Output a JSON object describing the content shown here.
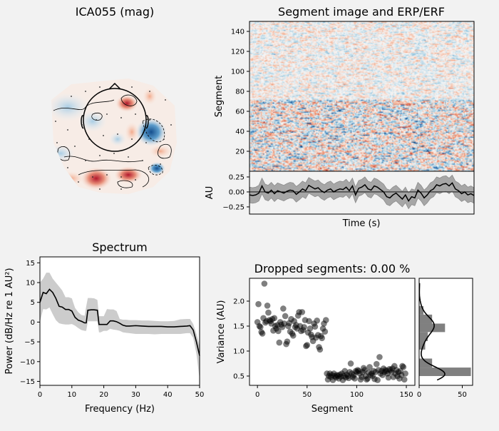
{
  "titles": {
    "topomap": "ICA055 (mag)",
    "segment_image": "Segment image and ERP/ERF",
    "spectrum": "Spectrum",
    "dropped": "Dropped segments: 0.00 %"
  },
  "chart_data": [
    {
      "id": "topomap",
      "type": "heatmap",
      "title": "ICA055 (mag)",
      "colormap": "RdBu_r",
      "colors": {
        "positive": "#b2182b",
        "negative": "#2166ac"
      }
    },
    {
      "id": "segment_image",
      "type": "heatmap",
      "title": "Segment image and ERP/ERF",
      "ylabel": "Segment",
      "ylim": [
        0,
        150
      ],
      "yticks": [
        "20",
        "40",
        "60",
        "80",
        "100",
        "120",
        "140"
      ],
      "colormap": "RdBu_r",
      "note_rows": "higher amplitude for segments 0–72"
    },
    {
      "id": "erp",
      "type": "line",
      "xlabel": "Time (s)",
      "ylabel": "AU",
      "ylim": [
        -0.37,
        0.345
      ],
      "yticks": [
        "0.25",
        "0.00",
        "−0.25"
      ],
      "mean": [
        -0.05,
        -0.06,
        -0.05,
        -0.02,
        0.1,
        0.0,
        -0.02,
        0.03,
        -0.03,
        0.02,
        0.0,
        -0.02,
        0.01,
        0.03,
        0.02,
        -0.04,
        0.0,
        0.05,
        0.02,
        0.11,
        0.08,
        0.05,
        0.07,
        0.02,
        -0.01,
        0.03,
        0.05,
        0.0,
        0.03,
        0.05,
        0.04,
        0.08,
        0.02,
        0.1,
        -0.05,
        0.06,
        0.08,
        0.12,
        0.05,
        0.03,
        0.1,
        0.08,
        0.04,
        0.0,
        -0.08,
        -0.1,
        -0.05,
        -0.02,
        -0.07,
        -0.12,
        -0.05,
        -0.15,
        -0.08,
        -0.1,
        0.03,
        -0.02,
        -0.1,
        -0.05,
        0.02,
        0.05,
        0.12,
        0.1,
        0.13,
        0.14,
        0.1,
        0.15,
        0.05,
        0.02,
        -0.03,
        0.0,
        -0.05,
        -0.03,
        -0.06
      ],
      "std": 0.13
    },
    {
      "id": "spectrum",
      "type": "line",
      "title": "Spectrum",
      "xlabel": "Frequency (Hz)",
      "ylabel": "Power (dB/Hz re 1 AU²)",
      "xlim": [
        0,
        50
      ],
      "ylim": [
        -16,
        16.5
      ],
      "xticks": [
        "0",
        "10",
        "20",
        "30",
        "40",
        "50"
      ],
      "yticks": [
        "15",
        "10",
        "5",
        "0",
        "−5",
        "−10",
        "−15"
      ],
      "freq": [
        0,
        1,
        2,
        3,
        4,
        5,
        6,
        7,
        8,
        9,
        10,
        11,
        12,
        13,
        14,
        14.5,
        15,
        16,
        17,
        18,
        18.5,
        19,
        20,
        21,
        22,
        23,
        24,
        25,
        26,
        27,
        28,
        30,
        32,
        34,
        36,
        38,
        40,
        42,
        44,
        46,
        47,
        48,
        49,
        50
      ],
      "mean": [
        5,
        7.5,
        7.2,
        8.3,
        7.5,
        6,
        4,
        3.8,
        3.2,
        3.2,
        2.8,
        1.2,
        0.5,
        0.2,
        -0.2,
        -0.2,
        3,
        3.1,
        3.1,
        3.0,
        -0.6,
        -0.6,
        -0.6,
        -0.6,
        0.3,
        0.3,
        0.1,
        -0.3,
        -0.8,
        -1,
        -1,
        -0.9,
        -1,
        -1.1,
        -1.1,
        -1.1,
        -1.2,
        -1.2,
        -1.1,
        -1,
        -0.9,
        -2,
        -5,
        -8.5
      ],
      "upper": [
        10,
        11,
        12.5,
        12.5,
        11,
        10,
        9,
        8,
        6.3,
        6.3,
        6,
        3.6,
        2.5,
        1.8,
        1.6,
        4,
        6.1,
        6.1,
        6,
        5.6,
        1.5,
        1.5,
        1.5,
        3.3,
        3.2,
        3.2,
        2.8,
        0.8,
        0.6,
        0.6,
        0.5,
        0.5,
        0.4,
        0.4,
        0.3,
        0.2,
        0.2,
        0.3,
        0.7,
        0.8,
        0.8,
        -0.5,
        -3,
        -6
      ],
      "lower": [
        0,
        3.3,
        3.2,
        3.7,
        2,
        0.5,
        -0.3,
        -0.5,
        -0.6,
        -0.6,
        -0.5,
        -0.9,
        -1.5,
        -2,
        -2.2,
        -2.2,
        0.2,
        0.2,
        0.2,
        0.2,
        -2.6,
        -2.6,
        -2.2,
        -2.2,
        -1.7,
        -1.9,
        -2,
        -2.2,
        -2.6,
        -2.7,
        -2.8,
        -3,
        -3,
        -3,
        -3.1,
        -3,
        -3,
        -3,
        -3,
        -2.8,
        -2.8,
        -4,
        -8,
        -14.5
      ]
    },
    {
      "id": "variance",
      "type": "scatter",
      "title": "Dropped segments: 0.00 %",
      "xlabel": "Segment",
      "ylabel": "Variance (AU)",
      "xlim": [
        -8,
        158.6
      ],
      "ylim": [
        0.314,
        2.457
      ],
      "xticks": [
        "0",
        "50",
        "100",
        "150"
      ],
      "yticks": [
        "0.5",
        "1.0",
        "1.5",
        "2.0"
      ],
      "values": [
        1.58,
        1.94,
        1.5,
        1.48,
        1.38,
        1.35,
        1.66,
        2.35,
        1.57,
        1.6,
        1.91,
        1.77,
        1.62,
        1.6,
        1.55,
        1.64,
        1.41,
        1.66,
        1.5,
        1.45,
        1.52,
        1.4,
        1.17,
        1.58,
        1.53,
        1.48,
        1.85,
        1.55,
        1.7,
        1.14,
        1.19,
        1.5,
        1.56,
        1.39,
        1.64,
        1.35,
        1.31,
        1.6,
        1.48,
        1.52,
        1.45,
        1.71,
        1.78,
        1.5,
        1.4,
        1.78,
        1.42,
        1.48,
        1.62,
        1.1,
        1.12,
        1.37,
        1.6,
        1.45,
        1.33,
        1.28,
        1.2,
        1.55,
        1.49,
        1.27,
        1.61,
        1.32,
        1.08,
        1.03,
        1.3,
        1.26,
        1.45,
        1.55,
        1.39,
        1.62,
        0.55,
        0.43,
        0.5,
        0.55,
        0.48,
        0.52,
        0.42,
        0.55,
        0.5,
        0.47,
        0.52,
        0.5,
        0.45,
        0.53,
        0.49,
        0.55,
        0.42,
        0.5,
        0.6,
        0.47,
        0.53,
        0.5,
        0.46,
        0.58,
        0.75,
        0.55,
        0.48,
        0.52,
        0.45,
        0.6,
        0.58,
        0.62,
        0.6,
        0.55,
        0.43,
        0.48,
        0.58,
        0.66,
        0.62,
        0.5,
        0.43,
        0.45,
        0.57,
        0.68,
        0.52,
        0.55,
        0.5,
        0.6,
        0.44,
        0.58,
        0.74,
        0.42,
        0.62,
        0.88,
        0.55,
        0.6,
        0.52,
        0.65,
        0.58,
        0.62,
        0.6,
        0.55,
        0.47,
        0.64,
        0.62,
        0.58,
        0.65,
        0.48,
        0.7,
        0.55,
        0.62,
        0.5,
        0.58,
        0.45,
        0.6,
        0.52,
        0.7,
        0.68,
        0.43,
        0.55
      ]
    },
    {
      "id": "variance_hist",
      "type": "bar",
      "orientation": "horizontal",
      "xlim": [
        0,
        62
      ],
      "xticks": [
        "0",
        "50"
      ],
      "bin_edges": [
        0.5,
        0.67,
        0.85,
        1.03,
        1.2,
        1.38,
        1.55,
        1.73,
        1.9
      ],
      "counts": [
        60,
        15,
        0,
        7,
        10,
        30,
        15,
        5
      ],
      "kde": true
    }
  ]
}
